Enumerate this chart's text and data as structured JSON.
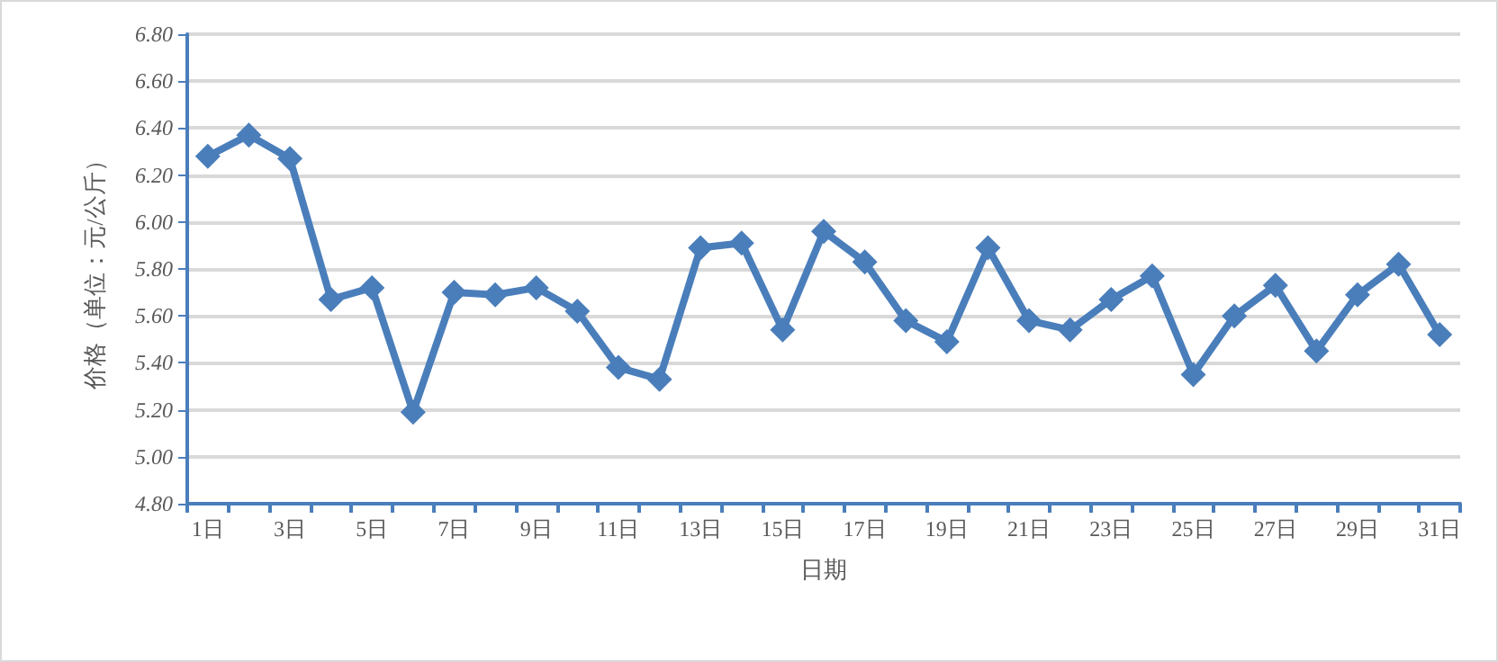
{
  "chart_data": {
    "type": "line",
    "xlabel": "日期",
    "ylabel": "价格（单位：元/公斤）",
    "categories": [
      "1日",
      null,
      "3日",
      null,
      "5日",
      null,
      "7日",
      null,
      "9日",
      null,
      "11日",
      null,
      "13日",
      null,
      "15日",
      null,
      "17日",
      null,
      "19日",
      null,
      "21日",
      null,
      "23日",
      null,
      "25日",
      null,
      "27日",
      null,
      "29日",
      null,
      "31日"
    ],
    "series": [
      {
        "color": "#4a7ebb",
        "values": [
          6.28,
          6.37,
          6.27,
          5.67,
          5.72,
          5.19,
          5.7,
          5.69,
          5.72,
          5.62,
          5.38,
          5.33,
          5.89,
          5.91,
          5.54,
          5.96,
          5.83,
          5.58,
          5.49,
          5.89,
          5.58,
          5.54,
          5.67,
          5.77,
          5.35,
          5.6,
          5.73,
          5.45,
          5.69,
          5.82,
          5.52
        ]
      }
    ],
    "ylim": [
      4.8,
      6.8
    ],
    "yticks": [
      {
        "value": 4.8,
        "label": "4.80"
      },
      {
        "value": 5.0,
        "label": "5.00"
      },
      {
        "value": 5.2,
        "label": "5.20"
      },
      {
        "value": 5.4,
        "label": "5.40"
      },
      {
        "value": 5.6,
        "label": "5.60"
      },
      {
        "value": 5.8,
        "label": "5.80"
      },
      {
        "value": 6.0,
        "label": "6.00"
      },
      {
        "value": 6.2,
        "label": "6.20"
      },
      {
        "value": 6.4,
        "label": "6.40"
      },
      {
        "value": 6.6,
        "label": "6.60"
      },
      {
        "value": 6.8,
        "label": "6.80"
      }
    ],
    "grid": "y",
    "marker": "diamond",
    "line_style": "solid"
  }
}
